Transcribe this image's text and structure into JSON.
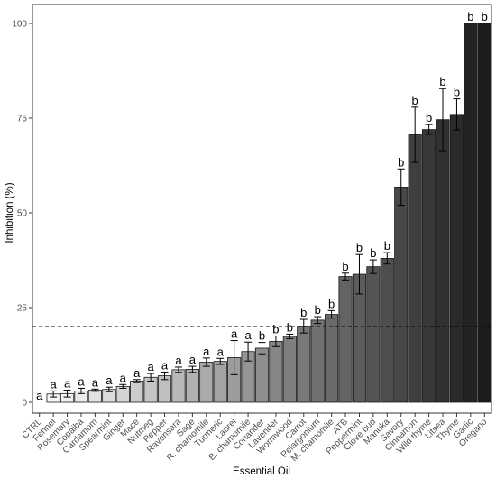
{
  "chart_data": {
    "type": "bar",
    "xlabel": "Essential Oil",
    "ylabel": "Inhibition (%)",
    "ylim": [
      0,
      104
    ],
    "yticks": [
      0,
      25,
      50,
      75,
      100
    ],
    "grid": false,
    "reference_line": {
      "y": 20,
      "style": "dashed"
    },
    "categories": [
      "CTRL",
      "Fennel",
      "Rosemary",
      "Copaiba",
      "Cardamom",
      "Spearmint",
      "Ginger",
      "Mace",
      "Nutmeg",
      "Pepper",
      "Ravensara",
      "Sage",
      "R. chamomile",
      "Turmeric",
      "Laurel",
      "B. chamomile",
      "Coriander",
      "Lavender",
      "Wormwood",
      "Carrot",
      "Pelargonium",
      "M. chamomile",
      "ATB",
      "Peppermint",
      "Clove bud",
      "Manuka",
      "Savory",
      "Cinnamon",
      "Wild thyme",
      "Litsea",
      "Thyme",
      "Garlic",
      "Oregano"
    ],
    "values": [
      0,
      2.2,
      2.3,
      3.0,
      3.2,
      3.4,
      4.2,
      5.6,
      6.6,
      7.0,
      8.6,
      8.7,
      10.6,
      10.8,
      11.8,
      13.4,
      14.3,
      16.1,
      17.4,
      20.1,
      21.7,
      23.2,
      33.2,
      33.8,
      35.8,
      38.0,
      56.8,
      70.6,
      72.0,
      74.6,
      76.0,
      100,
      100
    ],
    "errors": [
      0,
      0.8,
      0.9,
      0.7,
      0.3,
      0.6,
      0.5,
      0.4,
      1.0,
      1.0,
      0.7,
      0.8,
      1.1,
      0.8,
      4.5,
      2.5,
      1.5,
      1.4,
      0.6,
      1.8,
      0.9,
      1.0,
      0.9,
      5.2,
      1.8,
      1.5,
      4.8,
      7.3,
      1.3,
      8.2,
      4.1,
      0,
      0
    ],
    "significance": [
      "a",
      "a",
      "a",
      "a",
      "a",
      "a",
      "a",
      "a",
      "a",
      "a",
      "a",
      "a",
      "a",
      "a",
      "a",
      "a",
      "b",
      "b",
      "b",
      "b",
      "b",
      "b",
      "b",
      "b",
      "b",
      "b",
      "b",
      "b",
      "b",
      "b",
      "b",
      "b",
      "b"
    ],
    "colors": {
      "fill_start": "#ffffff",
      "fill_end": "#1c1c1c",
      "bar_stroke": "#1a1a1a",
      "axis": "#333333",
      "tick_text": "#4d4d4d"
    }
  }
}
